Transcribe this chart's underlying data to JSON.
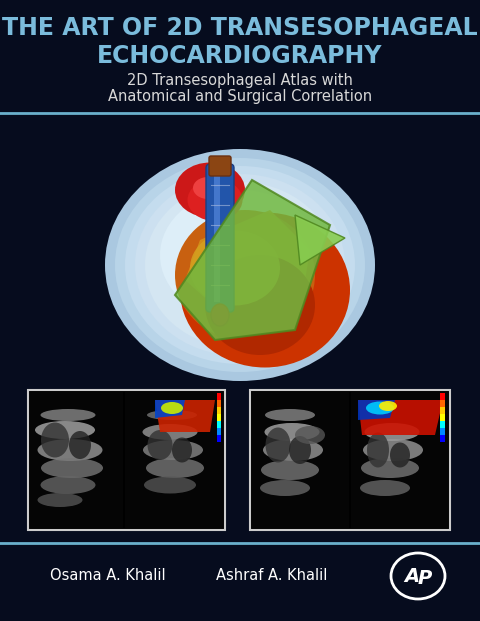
{
  "bg_color": "#060c1e",
  "title_line1": "THE ART OF 2D TRANSESOPHAGEAL",
  "title_line2": "ECHOCARDIOGRAPHY",
  "subtitle_line1": "2D Transesophageal Atlas with",
  "subtitle_line2": "Anatomical and Surgical Correlation",
  "title_color": "#7bbcdc",
  "subtitle_color": "#d8d8d8",
  "separator_color": "#6ab0cc",
  "author1": "Osama A. Khalil",
  "author2": "Ashraf A. Khalil",
  "author_color": "#ffffff",
  "title_fontsize": 17,
  "subtitle_fontsize": 10.5,
  "author_fontsize": 10.5,
  "figsize": [
    4.8,
    6.21
  ],
  "dpi": 100
}
